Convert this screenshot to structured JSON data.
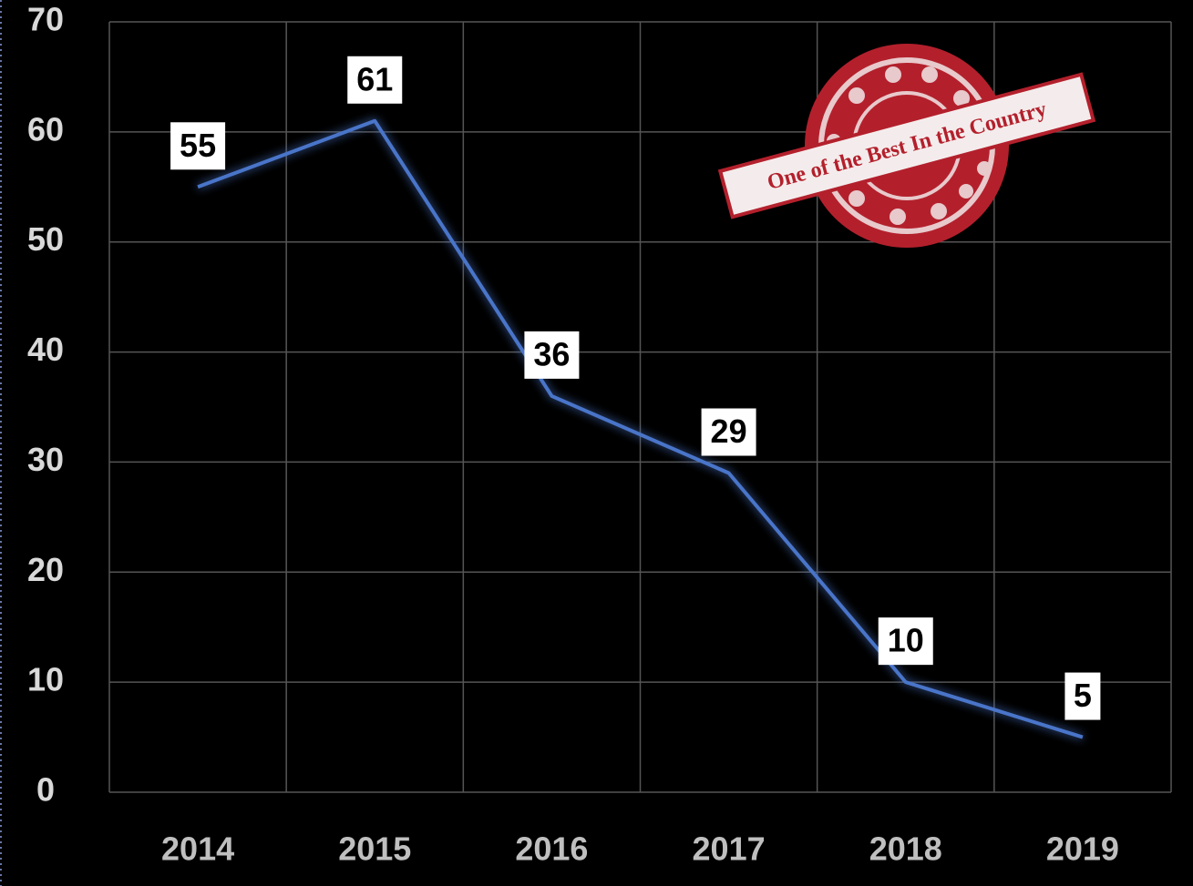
{
  "chart_data": {
    "type": "line",
    "annotation": "One of the Best In the Country",
    "categories": [
      "2014",
      "2015",
      "2016",
      "2017",
      "2018",
      "2019"
    ],
    "series": [
      {
        "name": "Series",
        "color": "#4a74c9",
        "values": [
          55,
          61,
          36,
          29,
          10,
          5
        ]
      }
    ],
    "ylim": [
      0,
      70
    ],
    "yticks": [
      0,
      10,
      20,
      30,
      40,
      50,
      60,
      70
    ],
    "grid": true
  }
}
